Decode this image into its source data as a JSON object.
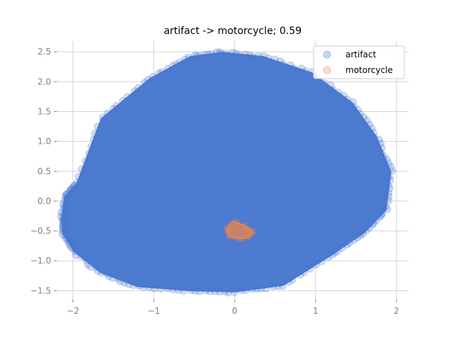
{
  "chart_data": {
    "type": "scatter",
    "title": "artifact -> motorcycle; 0.59",
    "xlabel": "",
    "ylabel": "",
    "xlim": [
      -2.2,
      2.15
    ],
    "ylim": [
      -1.65,
      2.68
    ],
    "xticks": [
      -2,
      -1,
      0,
      1,
      2
    ],
    "xtick_labels": [
      "−2",
      "−1",
      "0",
      "1",
      "2"
    ],
    "yticks": [
      -1.5,
      -1.0,
      -0.5,
      0.0,
      0.5,
      1.0,
      1.5,
      2.0,
      2.5
    ],
    "ytick_labels": [
      "−1.5",
      "−1.0",
      "−0.5",
      "0.0",
      "0.5",
      "1.0",
      "1.5",
      "2.0",
      "2.5"
    ],
    "grid": true,
    "legend_position": "top-right",
    "series": [
      {
        "name": "artifact",
        "color": "#4878cf",
        "hull": [
          [
            -0.15,
            2.49
          ],
          [
            0.35,
            2.42
          ],
          [
            0.95,
            2.15
          ],
          [
            1.45,
            1.65
          ],
          [
            1.75,
            1.08
          ],
          [
            1.93,
            0.49
          ],
          [
            1.87,
            -0.15
          ],
          [
            1.6,
            -0.53
          ],
          [
            1.2,
            -0.9
          ],
          [
            0.6,
            -1.41
          ],
          [
            0.0,
            -1.52
          ],
          [
            -0.55,
            -1.5
          ],
          [
            -1.2,
            -1.43
          ],
          [
            -1.65,
            -1.2
          ],
          [
            -1.98,
            -0.85
          ],
          [
            -2.12,
            -0.55
          ],
          [
            -2.14,
            -0.3
          ],
          [
            -2.1,
            0.08
          ],
          [
            -1.95,
            0.3
          ],
          [
            -1.65,
            1.38
          ],
          [
            -1.05,
            2.05
          ],
          [
            -0.55,
            2.42
          ]
        ]
      },
      {
        "name": "motorcycle",
        "color": "#ee854a",
        "hull": [
          [
            -0.02,
            -0.34
          ],
          [
            0.12,
            -0.4
          ],
          [
            0.2,
            -0.48
          ],
          [
            0.23,
            -0.54
          ],
          [
            0.16,
            -0.62
          ],
          [
            0.05,
            -0.63
          ],
          [
            -0.06,
            -0.6
          ],
          [
            -0.1,
            -0.52
          ],
          [
            -0.08,
            -0.42
          ]
        ]
      }
    ]
  }
}
